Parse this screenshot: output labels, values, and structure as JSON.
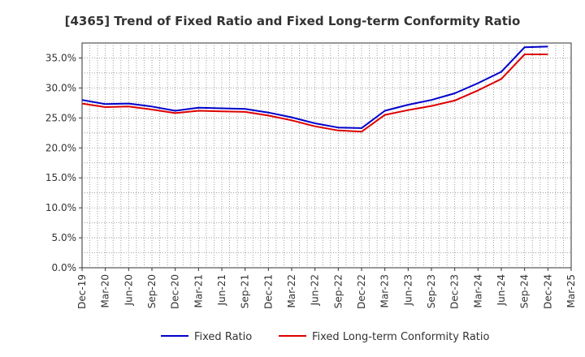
{
  "chart_data": {
    "type": "line",
    "title": "[4365]  Trend of Fixed Ratio and Fixed Long-term Conformity Ratio",
    "xlabel": "",
    "ylabel": "",
    "ylim": [
      0,
      37.5
    ],
    "yticks": [
      0,
      5,
      10,
      15,
      20,
      25,
      30,
      35
    ],
    "ytick_labels": [
      "0.0%",
      "5.0%",
      "10.0%",
      "15.0%",
      "20.0%",
      "25.0%",
      "30.0%",
      "35.0%"
    ],
    "categories": [
      "Dec-19",
      "Mar-20",
      "Jun-20",
      "Sep-20",
      "Dec-20",
      "Mar-21",
      "Jun-21",
      "Sep-21",
      "Dec-21",
      "Mar-22",
      "Jun-22",
      "Sep-22",
      "Dec-22",
      "Mar-23",
      "Jun-23",
      "Sep-23",
      "Dec-23",
      "Mar-24",
      "Jun-24",
      "Sep-24",
      "Dec-24",
      "Mar-25"
    ],
    "grid": true,
    "legend_position": "bottom",
    "series": [
      {
        "name": "Fixed Ratio",
        "color": "#0000cc",
        "values": [
          28.0,
          27.3,
          27.4,
          26.9,
          26.2,
          26.7,
          26.6,
          26.5,
          25.9,
          25.1,
          24.1,
          23.4,
          23.3,
          26.2,
          27.2,
          28.0,
          29.1,
          30.8,
          32.7,
          36.8,
          36.9,
          null
        ]
      },
      {
        "name": "Fixed Long-term Conformity Ratio",
        "color": "#dd0000",
        "values": [
          27.4,
          26.8,
          26.9,
          26.4,
          25.8,
          26.2,
          26.1,
          26.0,
          25.4,
          24.6,
          23.6,
          22.9,
          22.7,
          25.5,
          26.3,
          27.0,
          27.9,
          29.6,
          31.5,
          35.6,
          35.6,
          null
        ]
      }
    ]
  }
}
